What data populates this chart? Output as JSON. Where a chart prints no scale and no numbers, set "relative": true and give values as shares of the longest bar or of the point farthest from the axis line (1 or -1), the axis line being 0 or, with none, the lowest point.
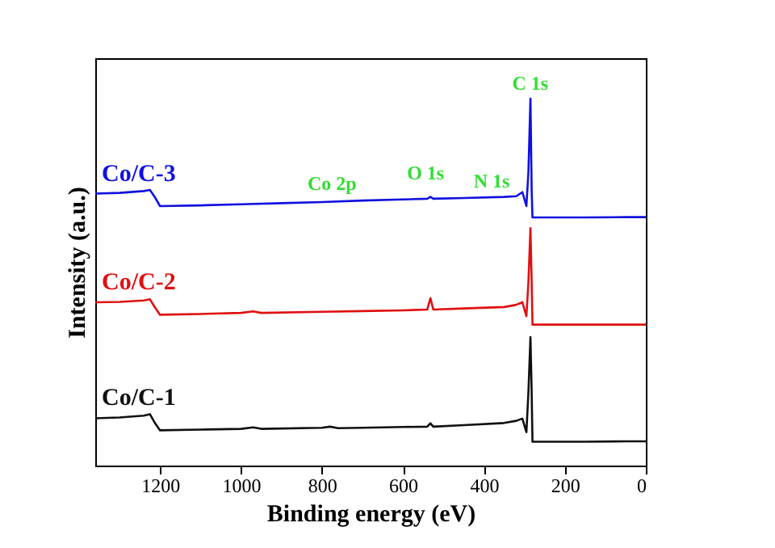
{
  "chart_data": {
    "type": "line",
    "xlabel": "Binding energy (eV)",
    "ylabel": "Intensity (a.u.)",
    "relative": true,
    "xlim": [
      1360,
      0
    ],
    "xticks": [
      1200,
      1000,
      800,
      600,
      400,
      200,
      0
    ],
    "grid": false,
    "legend": false,
    "marker": "none",
    "line_style": "solid",
    "annotations": [
      "Co 2p",
      "O 1s",
      "N 1s",
      "C 1s"
    ],
    "series": [
      {
        "name": "Co/C-3",
        "color": "#1010e0",
        "x": [
          1360,
          1300,
          1240,
          1225,
          1212,
          1200,
          1100,
          1000,
          900,
          800,
          700,
          600,
          540,
          532,
          525,
          450,
          350,
          320,
          305,
          295,
          290,
          285,
          282,
          280,
          250,
          150,
          50,
          0
        ],
        "values": [
          0.741,
          0.743,
          0.748,
          0.751,
          0.73,
          0.707,
          0.709,
          0.712,
          0.715,
          0.718,
          0.722,
          0.725,
          0.727,
          0.732,
          0.727,
          0.729,
          0.732,
          0.734,
          0.745,
          0.707,
          0.8,
          1,
          0.75,
          0.676,
          0.676,
          0.676,
          0.677,
          0.677
        ]
      },
      {
        "name": "Co/C-2",
        "color": "#e01010",
        "x": [
          1360,
          1300,
          1240,
          1225,
          1212,
          1200,
          1100,
          1000,
          970,
          950,
          800,
          700,
          600,
          540,
          532,
          525,
          450,
          350,
          320,
          305,
          295,
          290,
          285,
          282,
          280,
          250,
          150,
          50,
          0
        ],
        "values": [
          0.445,
          0.446,
          0.45,
          0.453,
          0.43,
          0.411,
          0.413,
          0.416,
          0.42,
          0.416,
          0.419,
          0.421,
          0.423,
          0.425,
          0.456,
          0.425,
          0.428,
          0.432,
          0.438,
          0.445,
          0.407,
          0.5,
          0.647,
          0.5,
          0.384,
          0.384,
          0.384,
          0.384,
          0.384
        ]
      },
      {
        "name": "Co/C-1",
        "color": "#101010",
        "x": [
          1360,
          1300,
          1240,
          1225,
          1212,
          1200,
          1100,
          1000,
          970,
          950,
          800,
          780,
          760,
          700,
          600,
          540,
          532,
          525,
          450,
          350,
          320,
          305,
          295,
          290,
          285,
          282,
          280,
          250,
          150,
          50,
          0
        ],
        "values": [
          0.129,
          0.131,
          0.136,
          0.14,
          0.115,
          0.096,
          0.098,
          0.1,
          0.104,
          0.1,
          0.103,
          0.106,
          0.102,
          0.103,
          0.105,
          0.106,
          0.115,
          0.106,
          0.11,
          0.116,
          0.122,
          0.128,
          0.091,
          0.2,
          0.35,
          0.2,
          0.065,
          0.065,
          0.065,
          0.066,
          0.066
        ]
      }
    ]
  }
}
